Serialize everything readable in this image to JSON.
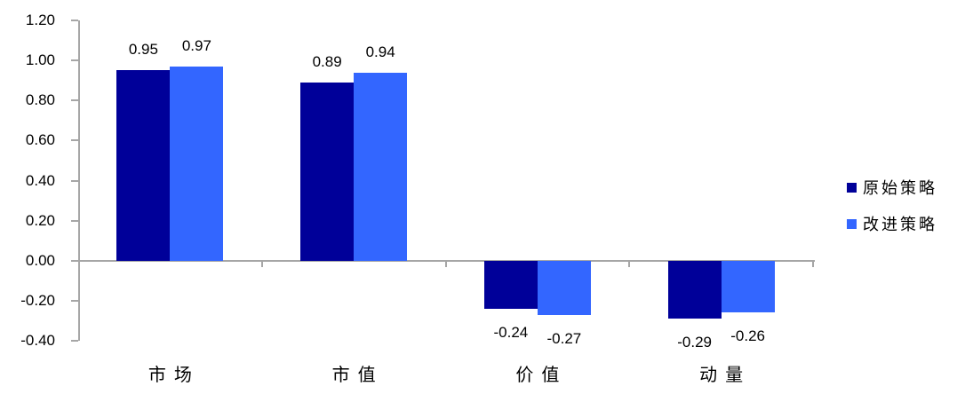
{
  "chart_data": {
    "type": "bar",
    "categories": [
      "市场",
      "市值",
      "价值",
      "动量"
    ],
    "series": [
      {
        "name": "原始策略",
        "color": "#000099",
        "values": [
          0.95,
          0.89,
          -0.24,
          -0.29
        ]
      },
      {
        "name": "改进策略",
        "color": "#3366FF",
        "values": [
          0.97,
          0.94,
          -0.27,
          -0.26
        ]
      }
    ],
    "bar_value_labels": {
      "原始策略": [
        "0.95",
        "0.89",
        "-0.24",
        "-0.29"
      ],
      "改进策略": [
        "0.97",
        "0.94",
        "-0.27",
        "-0.26"
      ]
    },
    "title": "",
    "xlabel": "",
    "ylabel": "",
    "ylim": [
      -0.4,
      1.2
    ],
    "y_tick_step": 0.2,
    "y_tick_labels": [
      "1.20",
      "1.00",
      "0.80",
      "0.60",
      "0.40",
      "0.20",
      "0.00",
      "-0.20",
      "-0.40"
    ],
    "grid": false,
    "legend_position": "right",
    "axis_color": "#A6A6A6",
    "text_color": "#000000",
    "background_color": "#FFFFFF"
  }
}
